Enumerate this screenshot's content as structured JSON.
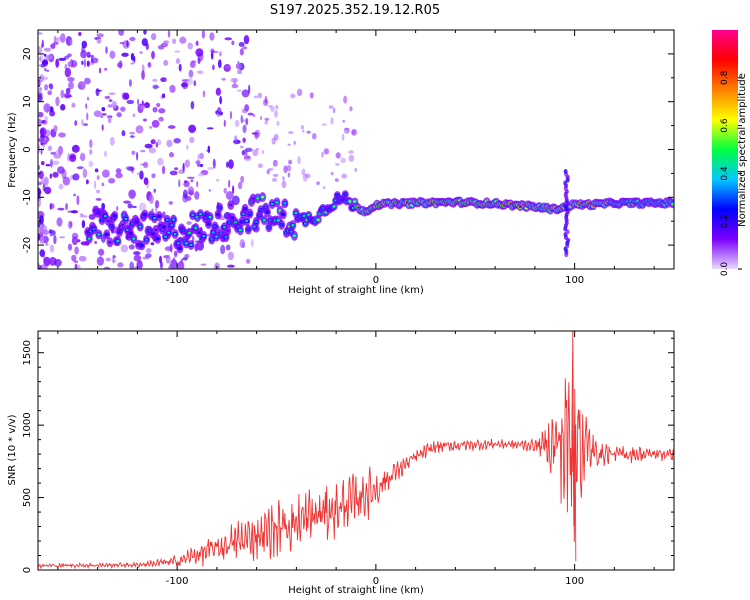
{
  "title": "S197.2025.352.19.12.R05",
  "chart_data": [
    {
      "type": "heatmap",
      "name": "spectrogram",
      "xlabel": "Height of straight line (km)",
      "ylabel": "Frequency (Hz)",
      "xlim": [
        -170,
        150
      ],
      "ylim": [
        -25,
        25
      ],
      "xticks": [
        -100,
        0,
        100
      ],
      "xtick_labels": [
        "-100",
        "0",
        "100"
      ],
      "yticks": [
        -20,
        -10,
        0,
        10,
        20
      ],
      "ytick_labels": [
        "-20",
        "-10",
        "0",
        "10",
        "20"
      ],
      "colorbar": {
        "label": "Normalized spectral amplitude",
        "range": [
          0,
          1
        ],
        "ticks": [
          0.0,
          0.2,
          0.4,
          0.6,
          0.8
        ],
        "tick_labels": [
          "0.0",
          "0.2",
          "0.4",
          "0.6",
          "0.8"
        ],
        "colors": [
          "#e8d8ff",
          "#7a00ff",
          "#0000ff",
          "#00c8ff",
          "#00ff40",
          "#ffff00",
          "#ff8000",
          "#ff0000",
          "#ff0090"
        ]
      },
      "ridge": {
        "x": [
          -140,
          -120,
          -100,
          -80,
          -60,
          -50,
          -40,
          -30,
          -20,
          -15,
          -10,
          -5,
          0,
          20,
          40,
          60,
          80,
          90,
          100,
          110,
          120,
          150
        ],
        "y": [
          -16,
          -17,
          -17.5,
          -15.5,
          -13,
          -14,
          -15,
          -14,
          -10.5,
          -10.5,
          -12,
          -13,
          -11.5,
          -11.2,
          -11,
          -11.3,
          -12,
          -12.5,
          -11.5,
          -11.5,
          -11.2,
          -11.2
        ]
      }
    },
    {
      "type": "line",
      "name": "snr",
      "xlabel": "Height of straight line (km)",
      "ylabel": "SNR (10 * v/v)",
      "xlim": [
        -170,
        150
      ],
      "ylim": [
        0,
        1650
      ],
      "xticks": [
        -100,
        0,
        100
      ],
      "xtick_labels": [
        "-100",
        "0",
        "100"
      ],
      "yticks": [
        0,
        500,
        1000,
        1500
      ],
      "ytick_labels": [
        "0",
        "500",
        "1000",
        "1500"
      ],
      "color": "#ee3333",
      "envelope": {
        "x": [
          -170,
          -120,
          -100,
          -80,
          -60,
          -40,
          -20,
          0,
          10,
          20,
          30,
          40,
          60,
          80,
          85,
          90,
          95,
          98,
          100,
          102,
          105,
          110,
          120,
          150
        ],
        "base": [
          30,
          35,
          60,
          150,
          240,
          330,
          420,
          560,
          680,
          780,
          850,
          860,
          870,
          860,
          860,
          870,
          880,
          900,
          900,
          880,
          850,
          810,
          800,
          800
        ],
        "amplitude": [
          15,
          15,
          40,
          100,
          160,
          180,
          200,
          150,
          80,
          50,
          45,
          40,
          30,
          40,
          100,
          250,
          500,
          700,
          800,
          650,
          300,
          100,
          60,
          40
        ]
      }
    }
  ]
}
